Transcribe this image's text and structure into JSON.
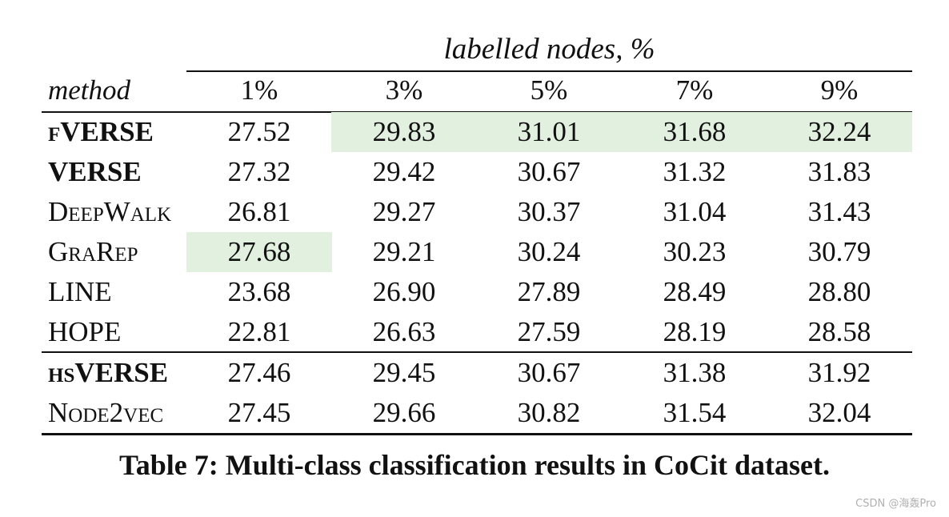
{
  "table": {
    "group_header": "labelled nodes, %",
    "method_header": "method",
    "columns": [
      "1%",
      "3%",
      "5%",
      "7%",
      "9%"
    ],
    "rows": [
      {
        "method": "fVERSE",
        "values": [
          "27.52",
          "29.83",
          "31.01",
          "31.68",
          "32.24"
        ]
      },
      {
        "method": "VERSE",
        "values": [
          "27.32",
          "29.42",
          "30.67",
          "31.32",
          "31.83"
        ]
      },
      {
        "method": "DeepWalk",
        "values": [
          "26.81",
          "29.27",
          "30.37",
          "31.04",
          "31.43"
        ]
      },
      {
        "method": "GraRep",
        "values": [
          "27.68",
          "29.21",
          "30.24",
          "30.23",
          "30.79"
        ]
      },
      {
        "method": "LINE",
        "values": [
          "23.68",
          "26.90",
          "27.89",
          "28.49",
          "28.80"
        ]
      },
      {
        "method": "HOPE",
        "values": [
          "22.81",
          "26.63",
          "27.59",
          "28.19",
          "28.58"
        ]
      },
      {
        "method": "hsVERSE",
        "values": [
          "27.46",
          "29.45",
          "30.67",
          "31.38",
          "31.92"
        ]
      },
      {
        "method": "Node2vec",
        "values": [
          "27.45",
          "29.66",
          "30.82",
          "31.54",
          "32.04"
        ]
      }
    ],
    "highlight_color": "#e2f0df"
  },
  "caption": "Table 7: Multi-class classification results in CoCit dataset.",
  "watermark": "CSDN @海轰Pro"
}
